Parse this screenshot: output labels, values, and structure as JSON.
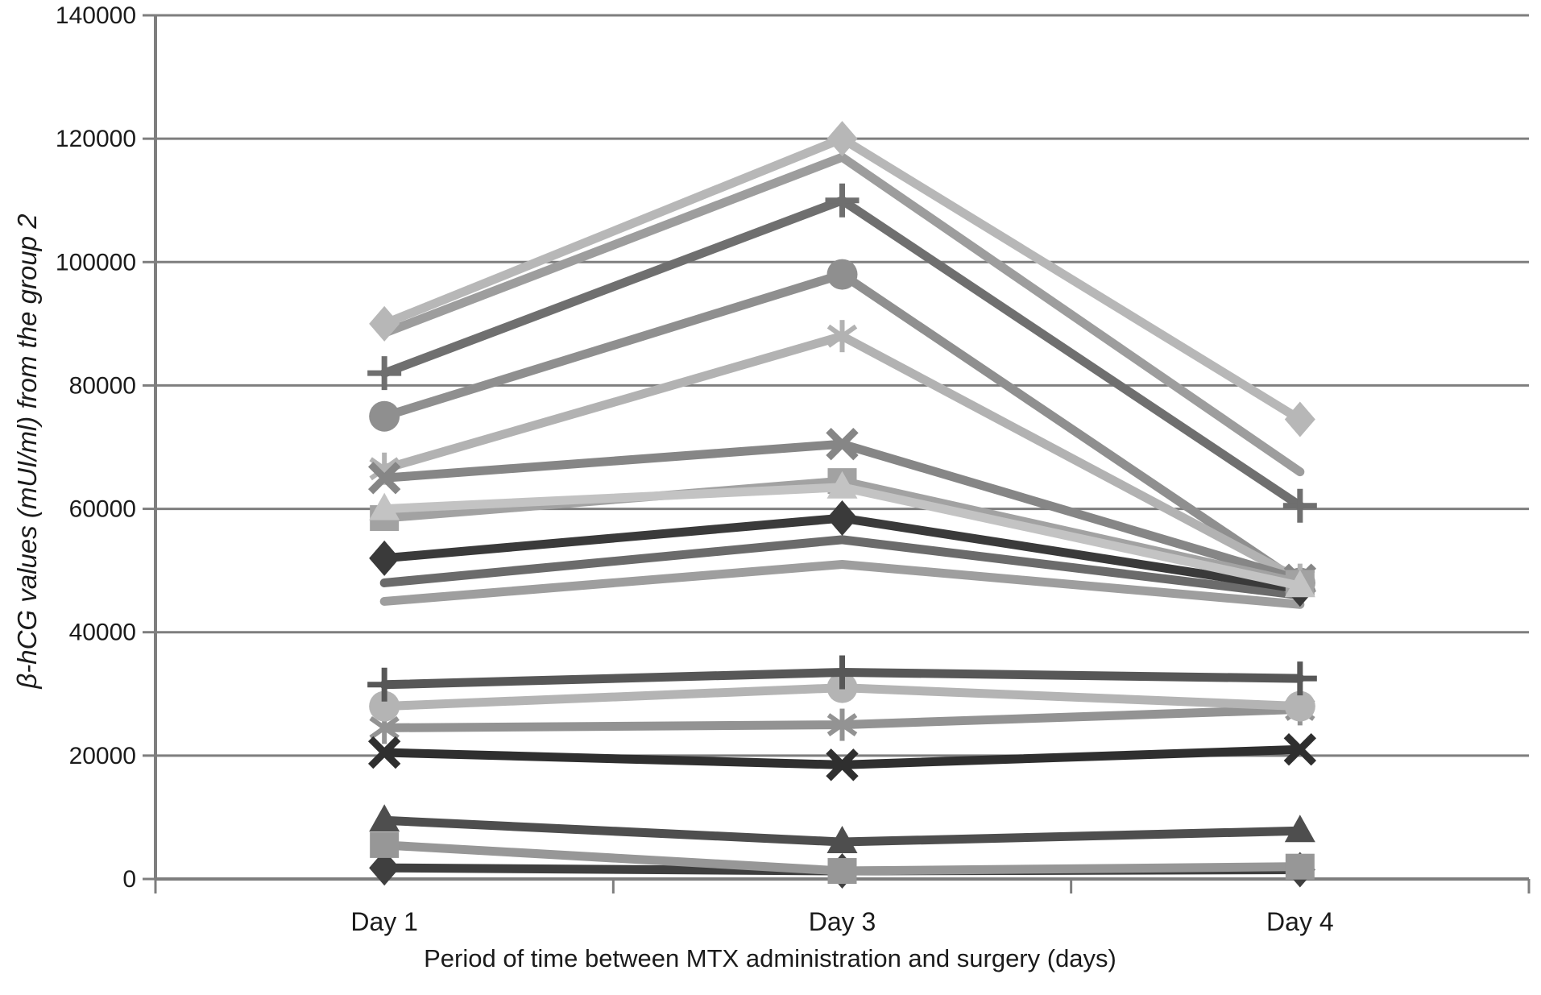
{
  "chart_data": {
    "type": "line",
    "title": "",
    "xlabel": "Period of time between MTX administration and surgery (days)",
    "ylabel": "β-hCG values (mUI/ml) from the group 2",
    "categories": [
      "Day 1",
      "Day 3",
      "Day 4"
    ],
    "ylim": [
      0,
      140000
    ],
    "yticks": [
      0,
      20000,
      40000,
      60000,
      80000,
      100000,
      120000,
      140000
    ],
    "grid": "horizontal",
    "legend": "none",
    "axis_color": "#7e7e7e",
    "label_color": "#1b1b1b",
    "series": [
      {
        "name": "line-medium",
        "marker": "none",
        "color": "#9d9d9d",
        "values": [
          88500,
          117000,
          66000
        ]
      },
      {
        "name": "line-light",
        "marker": "none",
        "color": "#9e9e9e",
        "values": [
          45000,
          51000,
          44500
        ]
      },
      {
        "name": "line-dark",
        "marker": "none",
        "color": "#6b6b6b",
        "values": [
          48000,
          55000,
          46000
        ]
      },
      {
        "name": "circle-gray",
        "marker": "circle",
        "color": "#8f8f8f",
        "values": [
          75000,
          98000,
          48000
        ]
      },
      {
        "name": "asterisk-light",
        "marker": "asterisk",
        "color": "#b2b2b2",
        "values": [
          66500,
          88000,
          48500
        ]
      },
      {
        "name": "x-medium",
        "marker": "x",
        "color": "#868686",
        "values": [
          65000,
          70500,
          48500
        ]
      },
      {
        "name": "plus-dark",
        "marker": "plus",
        "color": "#6f6f6f",
        "values": [
          82000,
          110000,
          60500
        ]
      },
      {
        "name": "diamond-light",
        "marker": "diamond",
        "color": "#b7b7b7",
        "values": [
          90000,
          120000,
          74500
        ]
      },
      {
        "name": "diamond-dark",
        "marker": "diamond",
        "color": "#3a3a3a",
        "values": [
          52000,
          58500,
          47000
        ]
      },
      {
        "name": "square-gray",
        "marker": "square",
        "color": "#a2a2a2",
        "values": [
          58500,
          64500,
          48000
        ]
      },
      {
        "name": "triangle-light",
        "marker": "triangle",
        "color": "#c3c3c3",
        "values": [
          60000,
          63500,
          47500
        ]
      },
      {
        "name": "asterisk-mid",
        "marker": "asterisk",
        "color": "#939393",
        "values": [
          24500,
          25000,
          27500
        ]
      },
      {
        "name": "circle-light",
        "marker": "circle",
        "color": "#b4b4b4",
        "values": [
          28000,
          31000,
          28000
        ]
      },
      {
        "name": "plus-mid-dark",
        "marker": "plus",
        "color": "#575757",
        "values": [
          31500,
          33500,
          32500
        ]
      },
      {
        "name": "x-dark",
        "marker": "x",
        "color": "#2f2f2f",
        "values": [
          20500,
          18500,
          21000
        ]
      },
      {
        "name": "triangle-dark",
        "marker": "triangle",
        "color": "#4e4e4e",
        "values": [
          9500,
          6000,
          7800
        ]
      },
      {
        "name": "diamond-dark-low",
        "marker": "diamond",
        "color": "#3f3f3f",
        "values": [
          1800,
          1300,
          1500
        ]
      },
      {
        "name": "square-medium-low",
        "marker": "square",
        "color": "#979797",
        "values": [
          5500,
          1300,
          2000
        ]
      }
    ]
  }
}
